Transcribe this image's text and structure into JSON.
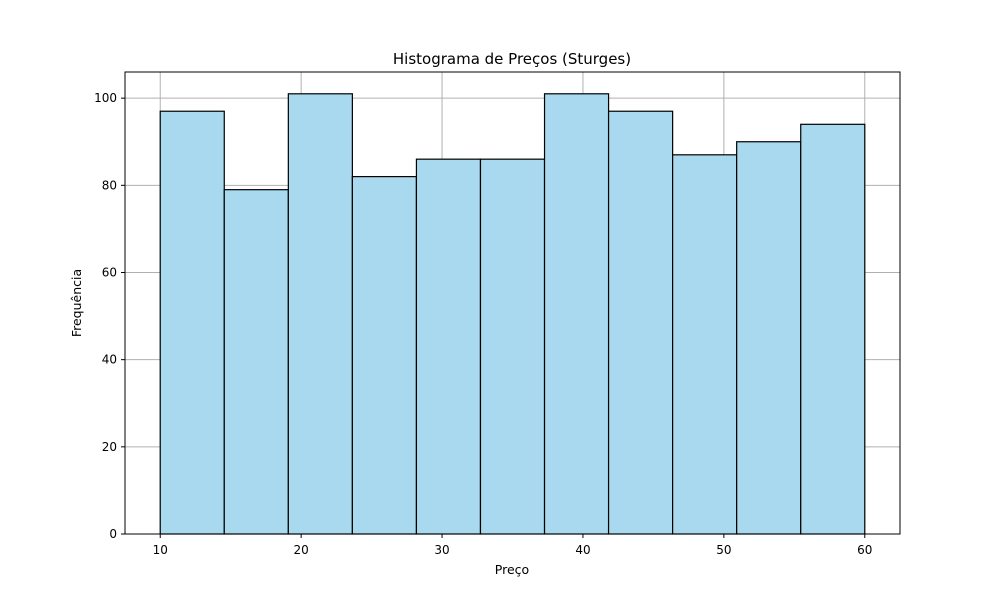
{
  "chart_data": {
    "type": "bar",
    "title": "Histograma de Preços (Sturges)",
    "xlabel": "Preço",
    "ylabel": "Frequência",
    "bin_edges": [
      10.0,
      14.545,
      19.091,
      23.636,
      28.182,
      32.727,
      37.273,
      41.818,
      46.364,
      50.909,
      55.455,
      60.0
    ],
    "values": [
      97,
      79,
      101,
      82,
      86,
      86,
      101,
      97,
      87,
      90,
      94
    ],
    "xlim": [
      7.5,
      62.5
    ],
    "ylim": [
      0,
      106
    ],
    "xticks": [
      10,
      20,
      30,
      40,
      50,
      60
    ],
    "yticks": [
      0,
      20,
      40,
      60,
      80,
      100
    ],
    "grid": true,
    "bar_color": "#a8d9ee",
    "edge_color": "#000000"
  }
}
